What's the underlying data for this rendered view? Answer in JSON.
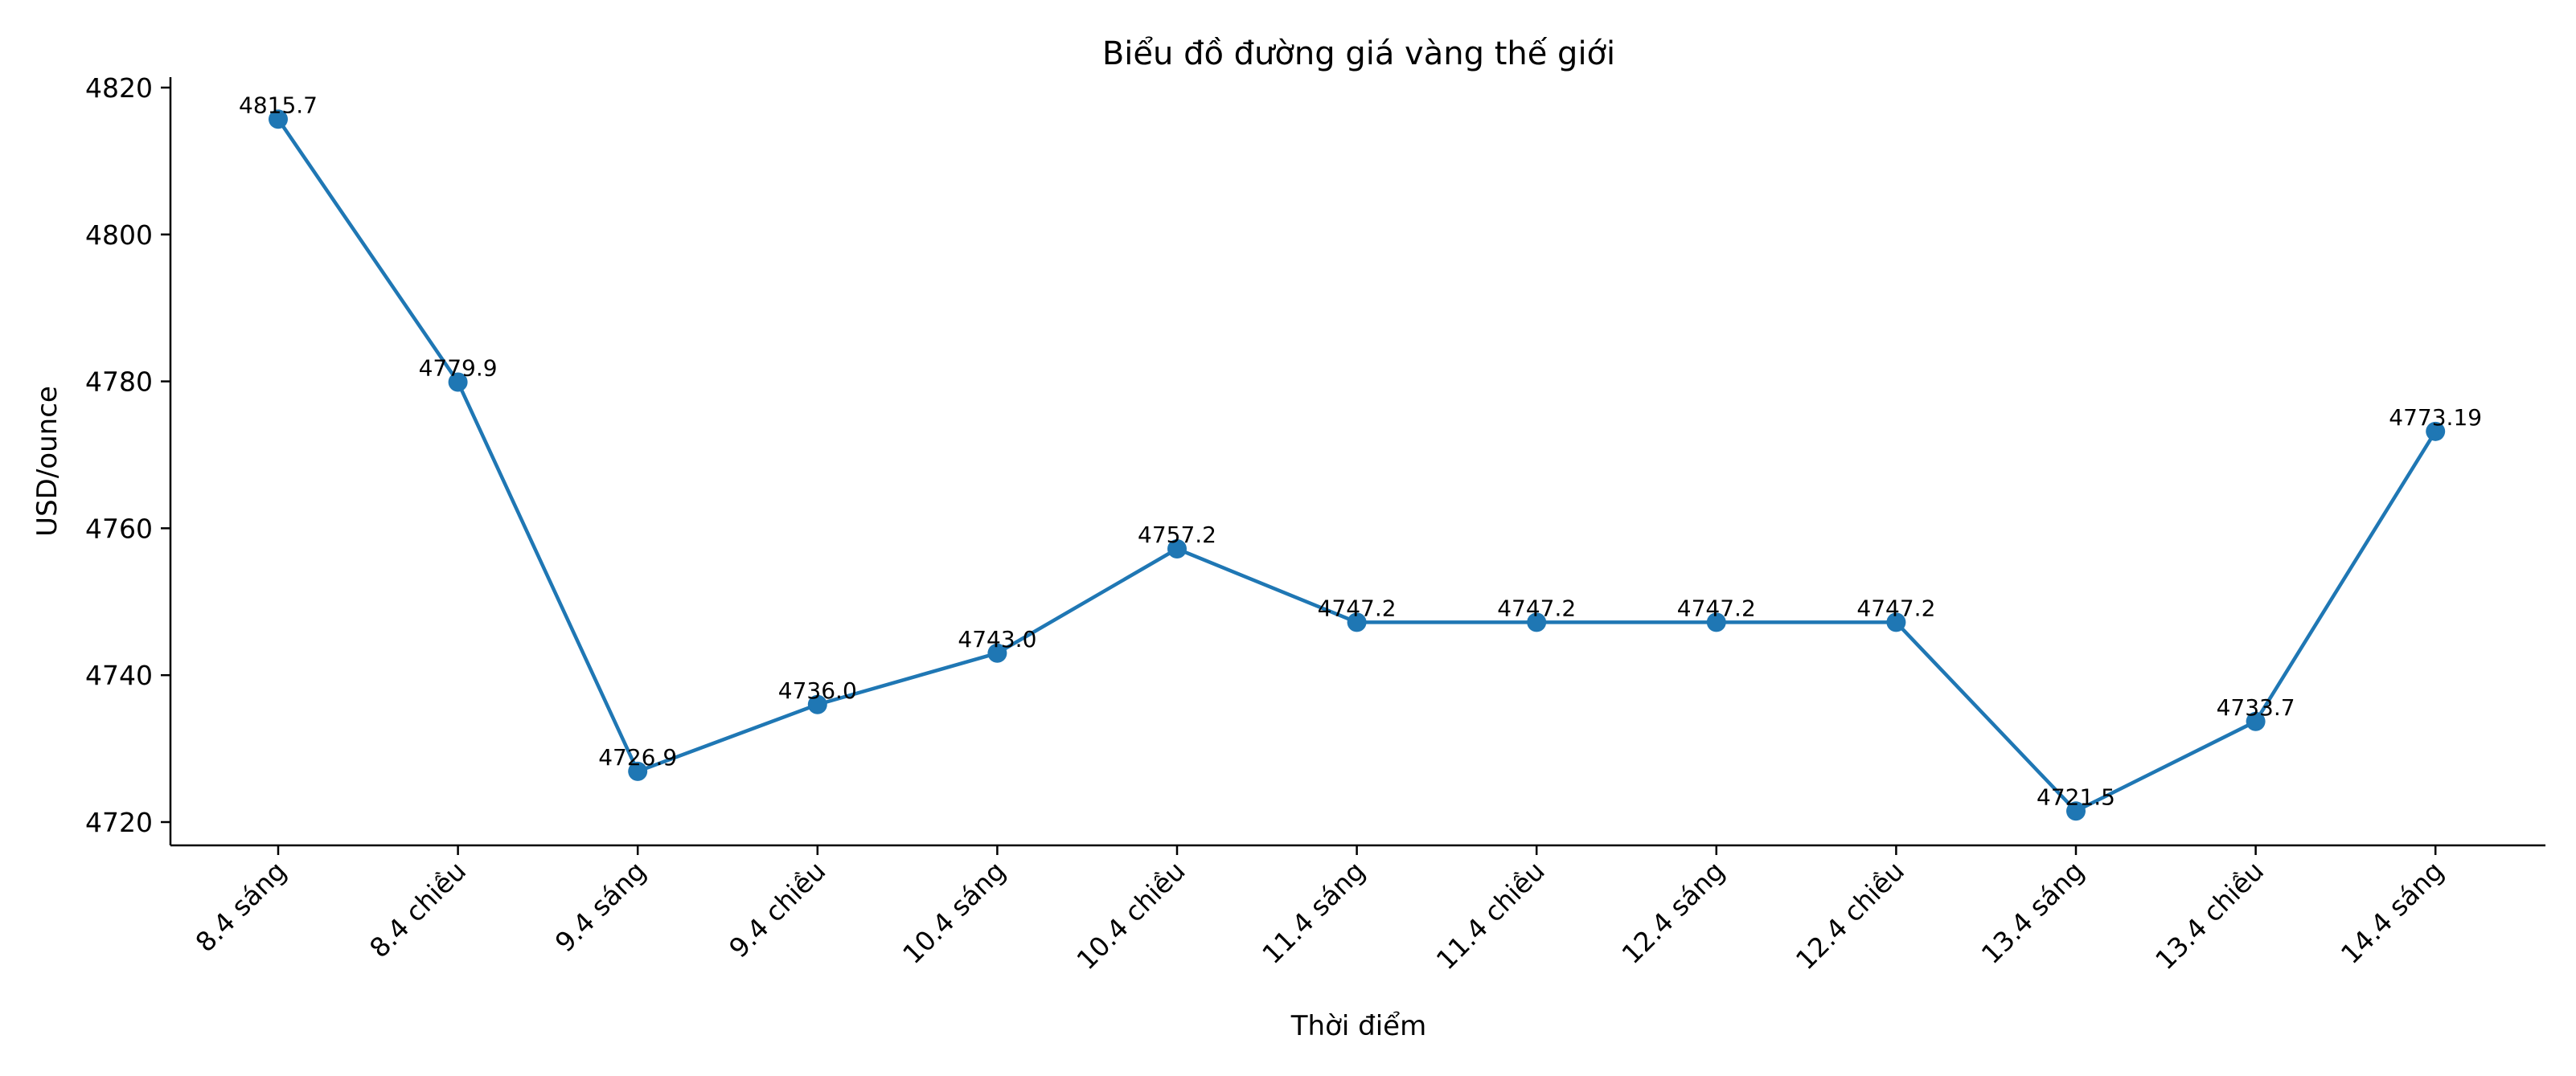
{
  "chart_data": {
    "type": "line",
    "title": "Biểu đồ đường giá vàng thế giới",
    "xlabel": "Thời điểm",
    "ylabel": "USD/ounce",
    "categories": [
      "8.4 sáng",
      "8.4 chiều",
      "9.4 sáng",
      "9.4 chiều",
      "10.4 sáng",
      "10.4 chiều",
      "11.4 sáng",
      "11.4 chiều",
      "12.4 sáng",
      "12.4 chiều",
      "13.4 sáng",
      "13.4 chiều",
      "14.4 sáng"
    ],
    "series": [
      {
        "name": "Giá vàng thế giới",
        "color": "#1f77b4",
        "marker": "circle",
        "values": [
          4815.7,
          4779.9,
          4726.9,
          4736.0,
          4743.0,
          4757.2,
          4747.2,
          4747.2,
          4747.2,
          4747.2,
          4721.5,
          4733.7,
          4773.19
        ],
        "labels": [
          "4815.7",
          "4779.9",
          "4726.9",
          "4736.0",
          "4743.0",
          "4757.2",
          "4747.2",
          "4747.2",
          "4747.2",
          "4747.2",
          "4721.5",
          "4733.7",
          "4773.19"
        ]
      }
    ],
    "yticks": [
      4720,
      4740,
      4760,
      4780,
      4800,
      4820
    ],
    "ylim": [
      4716.6,
      4820.2
    ],
    "grid": false,
    "legend": null,
    "xtick_rotation": -45,
    "spines": {
      "top": false,
      "right": false,
      "left": true,
      "bottom": true
    }
  }
}
